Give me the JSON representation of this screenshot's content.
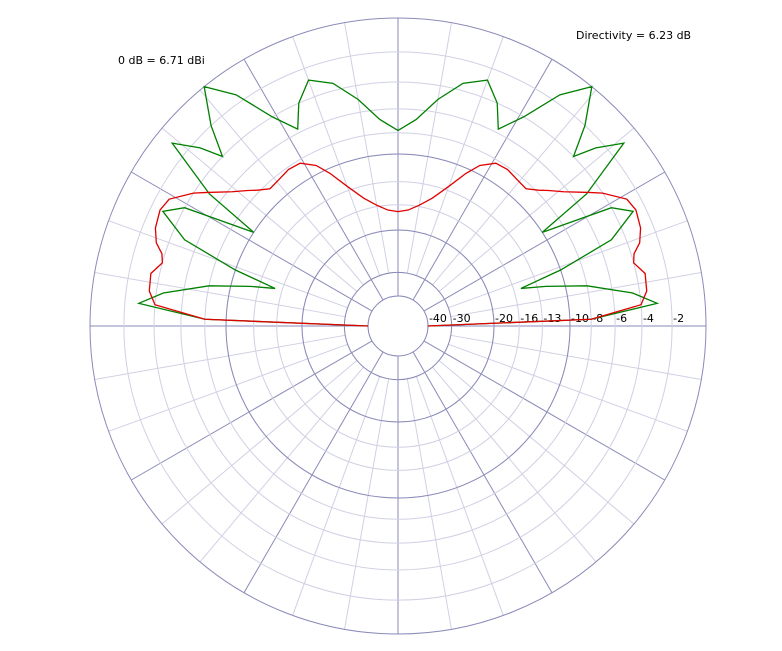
{
  "chart_data": {
    "type": "polar",
    "annotations": [
      "0 dB = 6.71 dBi",
      "Directivity = 6.23 dB"
    ],
    "radial_scale": "arrl-log",
    "rmax": 0,
    "rticks": [
      -40,
      -30,
      -20,
      -16,
      -13,
      -10,
      -8,
      -6,
      -4,
      -2
    ],
    "rgrid_major": [
      -40,
      -30,
      -20,
      -10,
      0
    ],
    "theta_major_step": 30,
    "theta_minor_step": 10,
    "x": [
      0,
      2,
      5,
      8,
      12,
      15,
      17,
      19,
      22,
      26,
      29,
      33,
      35,
      39,
      42,
      44,
      47,
      51,
      55,
      59,
      63,
      66,
      70,
      75,
      80,
      85,
      90,
      95,
      100,
      105,
      110,
      114,
      117,
      121,
      125,
      129,
      133,
      136,
      138,
      141,
      145,
      147,
      151,
      154,
      158,
      161,
      163,
      165,
      168,
      172,
      175,
      178,
      180
    ],
    "series": [
      {
        "color": "#008000",
        "values": [
          -40,
          -8,
          -2.9,
          -4.5,
          -8,
          -12,
          -15,
          -10,
          -5,
          -2.8,
          -4,
          -10,
          -5,
          -1,
          -2.5,
          -4,
          -2,
          0,
          -1.5,
          -4,
          -5.7,
          -4,
          -2.8,
          -3.5,
          -5,
          -6.8,
          -7.8,
          -6.8,
          -5,
          -3.5,
          -2.8,
          -4,
          -5.7,
          -4,
          -1.5,
          0,
          -2,
          -4,
          -2.5,
          -1,
          -5,
          -10,
          -4,
          -2.8,
          -5,
          -10,
          -15,
          -12,
          -8,
          -4.5,
          -2.9,
          -8,
          -40
        ]
      },
      {
        "color": "#e00000",
        "values": [
          -40,
          -8,
          -4,
          -3.5,
          -3.4,
          -4,
          -3.8,
          -3.2,
          -2.8,
          -2.6,
          -2.8,
          -4,
          -4.8,
          -6.3,
          -7.2,
          -7.8,
          -8.5,
          -8.4,
          -8.2,
          -8.3,
          -9.2,
          -10.5,
          -12.5,
          -14.5,
          -15.8,
          -16.7,
          -17,
          -16.7,
          -15.8,
          -14.5,
          -12.5,
          -10.5,
          -9.2,
          -8.3,
          -8.2,
          -8.4,
          -8.5,
          -7.8,
          -7.2,
          -6.3,
          -4.8,
          -4,
          -2.8,
          -2.6,
          -2.8,
          -3.2,
          -3.8,
          -4,
          -3.4,
          -3.5,
          -4,
          -8,
          -40
        ]
      }
    ]
  }
}
